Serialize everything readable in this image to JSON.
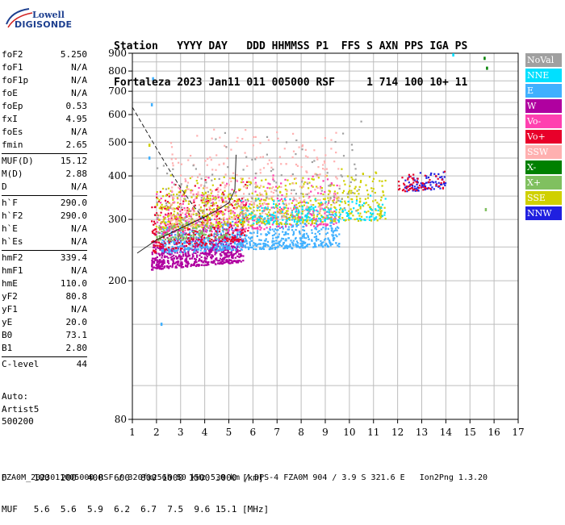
{
  "logo": {
    "line1": "Lowell",
    "line2": "DIGISONDE"
  },
  "header": {
    "line1": "Station   YYYY DAY   DDD HHMMSS P1  FFS S AXN PPS IGA PS",
    "line2": "Fortaleza 2023 Jan11 011 005000 RSF     1 714 100 10+ 11"
  },
  "params": {
    "group1": [
      {
        "name": "foF2",
        "value": "5.250"
      },
      {
        "name": "foF1",
        "value": "N/A"
      },
      {
        "name": "foF1p",
        "value": "N/A"
      },
      {
        "name": "foE",
        "value": "N/A"
      },
      {
        "name": "foEp",
        "value": "0.53"
      },
      {
        "name": "fxI",
        "value": "4.95"
      },
      {
        "name": "foEs",
        "value": "N/A"
      },
      {
        "name": "fmin",
        "value": "2.65"
      }
    ],
    "group2": [
      {
        "name": "MUF(D)",
        "value": "15.12"
      },
      {
        "name": "M(D)",
        "value": "2.88"
      },
      {
        "name": "D",
        "value": "N/A"
      }
    ],
    "group3": [
      {
        "name": "h`F",
        "value": "290.0"
      },
      {
        "name": "h`F2",
        "value": "290.0"
      },
      {
        "name": "h`E",
        "value": "N/A"
      },
      {
        "name": "h`Es",
        "value": "N/A"
      }
    ],
    "group4": [
      {
        "name": "hmF2",
        "value": "339.4"
      },
      {
        "name": "hmF1",
        "value": "N/A"
      },
      {
        "name": "hmE",
        "value": "110.0"
      },
      {
        "name": "yF2",
        "value": "80.8"
      },
      {
        "name": "yF1",
        "value": "N/A"
      },
      {
        "name": "yE",
        "value": "20.0"
      },
      {
        "name": "B0",
        "value": "73.1"
      },
      {
        "name": "B1",
        "value": "2.80"
      }
    ],
    "group5": [
      {
        "name": "C-level",
        "value": "44"
      }
    ]
  },
  "auto": {
    "line1": "Auto:",
    "line2": "Artist5",
    "line3": "500200"
  },
  "legend": [
    {
      "label": "NoVal",
      "color": "#a0a0a0"
    },
    {
      "label": "NNE",
      "color": "#00e0ff"
    },
    {
      "label": "E",
      "color": "#40b0ff"
    },
    {
      "label": "W",
      "color": "#b000a0"
    },
    {
      "label": "Vo-",
      "color": "#ff40b0"
    },
    {
      "label": "Vo+",
      "color": "#e8002a"
    },
    {
      "label": "SSW",
      "color": "#ffb0b0"
    },
    {
      "label": "X-",
      "color": "#008000"
    },
    {
      "label": "X+",
      "color": "#80c060"
    },
    {
      "label": "SSE",
      "color": "#d0d000"
    },
    {
      "label": "NNW",
      "color": "#2020e0"
    }
  ],
  "bottom": {
    "line1": "D     100  200  400  600  800 1000 1500 3000 [km]",
    "line2": "MUF   5.6  5.6  5.9  6.2  6.7  7.5  9.6 15.1 [MHz]"
  },
  "footer": "FZA0M_2023011005000.RSF / 320fx256h 50 kHz 5.0 km / DPS-4 FZA0M 904 / 3.9 S 321.6 E   Ion2Png 1.3.20",
  "chart_data": {
    "type": "scatter",
    "title": "",
    "xlabel": "",
    "ylabel": "",
    "xlim": [
      1,
      17
    ],
    "ylim": [
      80,
      900
    ],
    "y_scale": "log",
    "x_ticks": [
      1,
      2,
      3,
      4,
      5,
      6,
      7,
      8,
      9,
      10,
      11,
      12,
      13,
      14,
      15,
      16,
      17
    ],
    "y_ticks": [
      80,
      200,
      300,
      400,
      500,
      600,
      700,
      800,
      900
    ],
    "grid": true,
    "clusters": [
      {
        "series": "W",
        "x": [
          1.8,
          5.6
        ],
        "y": [
          215,
          300
        ],
        "n": 700
      },
      {
        "series": "E",
        "x": [
          2.2,
          9.6
        ],
        "y": [
          240,
          320
        ],
        "n": 700
      },
      {
        "series": "Vo+",
        "x": [
          1.8,
          5.8
        ],
        "y": [
          240,
          420
        ],
        "n": 350
      },
      {
        "series": "Vo-",
        "x": [
          2.0,
          9.5
        ],
        "y": [
          270,
          420
        ],
        "n": 350
      },
      {
        "series": "SSE",
        "x": [
          2.0,
          11.5
        ],
        "y": [
          280,
          430
        ],
        "n": 700
      },
      {
        "series": "SSW",
        "x": [
          2.5,
          9.6
        ],
        "y": [
          280,
          620
        ],
        "n": 350
      },
      {
        "series": "NNE",
        "x": [
          5.5,
          11.5
        ],
        "y": [
          290,
          360
        ],
        "n": 200
      },
      {
        "series": "X+",
        "x": [
          2.0,
          5.0
        ],
        "y": [
          260,
          300
        ],
        "n": 100
      },
      {
        "series": "NNW",
        "x": [
          12.3,
          14.0
        ],
        "y": [
          360,
          420
        ],
        "n": 80
      },
      {
        "series": "Vo+",
        "x": [
          12.0,
          14.0
        ],
        "y": [
          360,
          420
        ],
        "n": 60
      },
      {
        "series": "NoVal",
        "x": [
          2.0,
          10.5
        ],
        "y": [
          280,
          620
        ],
        "n": 150
      }
    ],
    "isolated_points": [
      {
        "series": "E",
        "x": 1.85,
        "y": 760
      },
      {
        "series": "E",
        "x": 1.8,
        "y": 640
      },
      {
        "series": "NNE",
        "x": 14.3,
        "y": 890
      },
      {
        "series": "X-",
        "x": 15.6,
        "y": 870
      },
      {
        "series": "X-",
        "x": 15.7,
        "y": 815
      },
      {
        "series": "X+",
        "x": 15.65,
        "y": 320
      },
      {
        "series": "SSE",
        "x": 1.7,
        "y": 490
      },
      {
        "series": "E",
        "x": 1.7,
        "y": 450
      },
      {
        "series": "E",
        "x": 2.2,
        "y": 150
      }
    ],
    "curves": [
      {
        "name": "",
        "style": "dashed",
        "x": [
          1.0,
          1.5,
          2.0,
          2.5,
          3.0,
          3.5,
          4.0
        ],
        "y": [
          630,
          550,
          480,
          420,
          370,
          330,
          300
        ]
      },
      {
        "name": "",
        "style": "solid",
        "x": [
          1.2,
          2.0,
          3.0,
          4.0,
          4.5,
          5.0,
          5.25,
          5.3
        ],
        "y": [
          240,
          262,
          283,
          305,
          318,
          335,
          365,
          460
        ]
      }
    ]
  }
}
